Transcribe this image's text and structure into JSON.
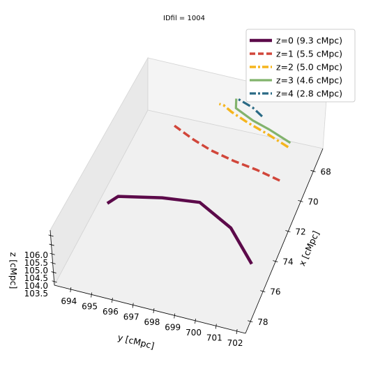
{
  "chart_data": {
    "type": "line",
    "projection": "3d",
    "title": "IDfil = 1004",
    "xlabel": "x [cMpc]",
    "ylabel": "y [cMpc]",
    "zlabel": "z [cMpc]",
    "x_ticks": [
      "68",
      "70",
      "72",
      "74",
      "76",
      "78"
    ],
    "y_ticks": [
      "694",
      "695",
      "696",
      "697",
      "698",
      "699",
      "700",
      "701",
      "702"
    ],
    "z_ticks": [
      "106.0",
      "105.5",
      "105.0",
      "104.5",
      "104.0",
      "103.5"
    ],
    "xlim": [
      66.5,
      78.8
    ],
    "ylim": [
      693.2,
      702.4
    ],
    "zlim": [
      103.3,
      106.3
    ],
    "grid": false,
    "legend_position": "top-right",
    "series": [
      {
        "name": "z=0 (9.3 cMpc)",
        "color": "#5c0a4a",
        "dash": "solid",
        "width": 4.5,
        "points": [
          {
            "x": 76.3,
            "y": 701.9,
            "z": 105.0
          },
          {
            "x": 74.4,
            "y": 700.2,
            "z": 105.0
          },
          {
            "x": 73.3,
            "y": 698.3,
            "z": 105.0
          },
          {
            "x": 73.6,
            "y": 696.6,
            "z": 105.0
          },
          {
            "x": 74.2,
            "y": 694.7,
            "z": 105.0
          },
          {
            "x": 74.8,
            "y": 694.4,
            "z": 105.0
          }
        ]
      },
      {
        "name": "z=1 (5.5 cMpc)",
        "color": "#d1463a",
        "dash": "dashed",
        "width": 3.5,
        "points": [
          {
            "x": 70.7,
            "y": 701.2,
            "z": 105.0
          },
          {
            "x": 70.4,
            "y": 700.0,
            "z": 105.0
          },
          {
            "x": 70.2,
            "y": 698.8,
            "z": 105.0
          },
          {
            "x": 69.9,
            "y": 697.6,
            "z": 105.0
          },
          {
            "x": 69.5,
            "y": 696.6,
            "z": 105.0
          },
          {
            "x": 68.9,
            "y": 695.4,
            "z": 105.0
          }
        ]
      },
      {
        "name": "z=2 (5.0 cMpc)",
        "color": "#f5b51d",
        "dash": "dashdot",
        "width": 3.5,
        "points": [
          {
            "x": 68.5,
            "y": 700.8,
            "z": 105.0
          },
          {
            "x": 68.0,
            "y": 699.6,
            "z": 105.0
          },
          {
            "x": 67.6,
            "y": 698.5,
            "z": 105.0
          },
          {
            "x": 67.2,
            "y": 697.6,
            "z": 105.0
          },
          {
            "x": 66.9,
            "y": 697.1,
            "z": 105.0
          },
          {
            "x": 66.9,
            "y": 696.9,
            "z": 105.0
          }
        ]
      },
      {
        "name": "z=3 (4.6 cMpc)",
        "color": "#82b36c",
        "dash": "solid",
        "width": 3.2,
        "points": [
          {
            "x": 68.2,
            "y": 700.8,
            "z": 105.0
          },
          {
            "x": 67.7,
            "y": 699.6,
            "z": 105.0
          },
          {
            "x": 67.4,
            "y": 698.7,
            "z": 105.0
          },
          {
            "x": 67.1,
            "y": 698.1,
            "z": 105.0
          },
          {
            "x": 66.9,
            "y": 697.7,
            "z": 105.0
          },
          {
            "x": 66.3,
            "y": 697.5,
            "z": 105.0
          }
        ]
      },
      {
        "name": "z=4 (2.8 cMpc)",
        "color": "#2a6a85",
        "dash": "dashdot",
        "width": 3.2,
        "points": [
          {
            "x": 67.0,
            "y": 699.0,
            "z": 105.0
          },
          {
            "x": 66.6,
            "y": 698.4,
            "z": 105.0
          },
          {
            "x": 66.3,
            "y": 697.6,
            "z": 105.0
          }
        ]
      }
    ]
  }
}
